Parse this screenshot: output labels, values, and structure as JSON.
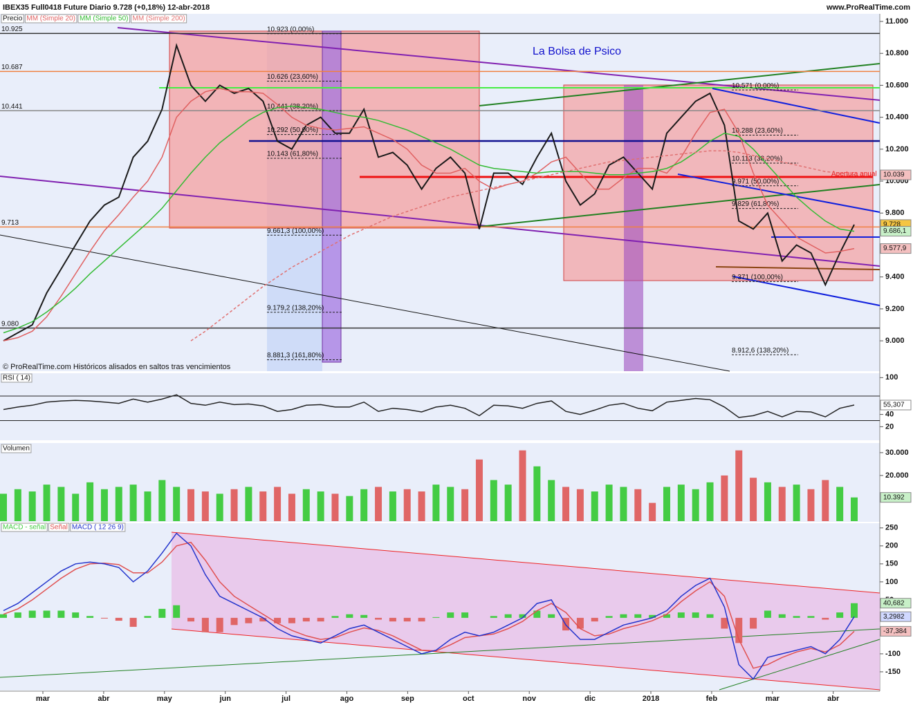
{
  "chart_data": [
    {
      "type": "line",
      "title": "IBEX35 Full0418 Future  Diario  9.728 (+0,18%)  12-abr-2018",
      "source": "www.ProRealTime.com",
      "watermark": "La Bolsa de Psico",
      "footnote": "© ProRealTime.com Históricos alisados en saltos tras vencimientos",
      "annotation": "Apertura anual",
      "ylim": [
        8810,
        11026
      ],
      "yticks": [
        {
          "value": 9000,
          "label": "9.000"
        },
        {
          "value": 9200,
          "label": "9.200"
        },
        {
          "value": 9400,
          "label": "9.400"
        },
        {
          "value": 9800,
          "label": "9.800"
        },
        {
          "value": 10000,
          "label": "10.000"
        },
        {
          "value": 10200,
          "label": "10.200"
        },
        {
          "value": 10400,
          "label": "10.400"
        },
        {
          "value": 10600,
          "label": "10.600"
        },
        {
          "value": 10800,
          "label": "10.800"
        },
        {
          "value": 11000,
          "label": "11.000"
        }
      ],
      "x_labels": [
        "mar",
        "abr",
        "may",
        "jun",
        "jul",
        "ago",
        "sep",
        "oct",
        "nov",
        "dic",
        "2018",
        "feb",
        "mar",
        "abr"
      ],
      "series": [
        {
          "name": "Precio",
          "color": "#1a1a1a",
          "values": [
            9000,
            9050,
            9100,
            9300,
            9450,
            9600,
            9750,
            9850,
            9900,
            10150,
            10250,
            10450,
            10850,
            10600,
            10500,
            10600,
            10550,
            10580,
            10500,
            10250,
            10200,
            10350,
            10400,
            10300,
            10300,
            10450,
            10150,
            10180,
            10100,
            9950,
            10080,
            10150,
            10050,
            9700,
            10050,
            10050,
            9980,
            10150,
            10300,
            10000,
            9850,
            9920,
            10100,
            10150,
            10050,
            9950,
            10300,
            10400,
            10500,
            10550,
            10350,
            9750,
            9700,
            9800,
            9500,
            9600,
            9550,
            9350,
            9550,
            9728
          ]
        },
        {
          "name": "MM (Simple 20)",
          "color": "#e06060",
          "values": [
            9000,
            9020,
            9060,
            9150,
            9280,
            9420,
            9560,
            9690,
            9790,
            9900,
            10000,
            10150,
            10400,
            10500,
            10560,
            10580,
            10560,
            10560,
            10550,
            10480,
            10400,
            10350,
            10330,
            10320,
            10330,
            10340,
            10300,
            10260,
            10200,
            10100,
            10050,
            10050,
            10080,
            10000,
            9950,
            9980,
            10000,
            10050,
            10120,
            10150,
            10050,
            9950,
            9950,
            10020,
            10080,
            10080,
            10050,
            10150,
            10300,
            10430,
            10450,
            10300,
            10050,
            9850,
            9750,
            9650,
            9600,
            9550,
            9560,
            9577.9
          ]
        },
        {
          "name": "MM (Simple 50)",
          "color": "#33bb33",
          "values": [
            9050,
            9080,
            9120,
            9180,
            9250,
            9330,
            9420,
            9500,
            9580,
            9660,
            9740,
            9830,
            9940,
            10050,
            10150,
            10240,
            10310,
            10380,
            10430,
            10460,
            10470,
            10460,
            10450,
            10430,
            10410,
            10400,
            10380,
            10350,
            10320,
            10280,
            10240,
            10200,
            10150,
            10100,
            10080,
            10070,
            10060,
            10050,
            10060,
            10060,
            10060,
            10050,
            10040,
            10040,
            10050,
            10060,
            10080,
            10120,
            10180,
            10250,
            10300,
            10280,
            10200,
            10100,
            10000,
            9900,
            9820,
            9750,
            9700,
            9686.1
          ]
        },
        {
          "name": "MM (Simple 200)",
          "color": "#e07070",
          "values": [
            null,
            null,
            null,
            null,
            null,
            null,
            null,
            null,
            null,
            null,
            null,
            null,
            null,
            9000,
            9060,
            9130,
            9200,
            9270,
            9340,
            9400,
            9460,
            9510,
            9560,
            9610,
            9660,
            9700,
            9740,
            9780,
            9810,
            9840,
            9870,
            9900,
            9920,
            9940,
            9960,
            9980,
            10000,
            10020,
            10040,
            10060,
            10080,
            10100,
            10120,
            10130,
            10140,
            10150,
            10160,
            10170,
            10180,
            10190,
            10190,
            10180,
            10160,
            10140,
            10120,
            10100,
            10080,
            10060,
            10050,
            10039
          ]
        }
      ],
      "levels": [
        {
          "value": 10925,
          "label": "10.925",
          "color": "#333333"
        },
        {
          "value": 10687,
          "label": "10.687",
          "color": "#f08040"
        },
        {
          "value": 10441,
          "label": "10.441",
          "color": "#888888"
        },
        {
          "value": 9713,
          "label": "9.713",
          "color": "#f08040"
        },
        {
          "value": 9080,
          "label": "9.080",
          "color": "#333333"
        }
      ],
      "fibs": [
        [
          {
            "value": 10923,
            "label": "10.923 (0,00%)"
          },
          {
            "value": 10626,
            "label": "10.626 (23,60%)"
          },
          {
            "value": 10441,
            "label": "10.441 (38,20%)"
          },
          {
            "value": 10292,
            "label": "10.292 (50,00%)"
          },
          {
            "value": 10143,
            "label": "10.143 (61,80%)"
          },
          {
            "value": 9661.3,
            "label": "9.661,3 (100,00%)"
          },
          {
            "value": 9179.2,
            "label": "9.179,2 (138,20%)"
          },
          {
            "value": 8881.3,
            "label": "8.881,3 (161,80%)"
          }
        ],
        [
          {
            "value": 10571,
            "label": "10.571 (0,00%)"
          },
          {
            "value": 10288,
            "label": "10.288 (23,60%)"
          },
          {
            "value": 10113,
            "label": "10.113 (38,20%)"
          },
          {
            "value": 9971,
            "label": "9.971 (50,00%)"
          },
          {
            "value": 9829,
            "label": "9.829 (61,80%)"
          },
          {
            "value": 9371,
            "label": "9.371 (100,00%)"
          },
          {
            "value": 8912.6,
            "label": "8.912,6 (138,20%)"
          }
        ]
      ],
      "boxes": [
        {
          "value": 10039,
          "label": "10.039",
          "color": "#f4c0c0"
        },
        {
          "value": 9728,
          "label": "9.728",
          "color": "#f5c542"
        },
        {
          "value": 9686.1,
          "label": "9.686,1",
          "color": "#c8f0c8"
        },
        {
          "value": 9577.9,
          "label": "9.577,9",
          "color": "#f4c0c0"
        }
      ]
    },
    {
      "type": "line",
      "ylim": [
        -1,
        106
      ],
      "yticks": [
        20,
        40,
        100
      ],
      "levels": [
        70,
        30
      ],
      "series": [
        {
          "name": "RSI ( 14)",
          "color": "#222222",
          "values": [
            48,
            52,
            55,
            60,
            62,
            63,
            62,
            60,
            58,
            65,
            60,
            65,
            72,
            58,
            55,
            60,
            56,
            57,
            54,
            45,
            48,
            55,
            56,
            52,
            52,
            60,
            45,
            50,
            48,
            44,
            52,
            55,
            50,
            38,
            55,
            54,
            50,
            58,
            62,
            45,
            40,
            47,
            55,
            58,
            50,
            46,
            60,
            63,
            66,
            64,
            52,
            35,
            38,
            45,
            36,
            45,
            44,
            36,
            50,
            55.307
          ]
        }
      ],
      "boxes": [
        {
          "value": 55.307,
          "label": "55,307",
          "color": "#ffffff"
        }
      ]
    },
    {
      "type": "bar",
      "ylim": [
        0,
        33600
      ],
      "yticks": [
        {
          "value": 20000,
          "label": "20.000"
        },
        {
          "value": 30000,
          "label": "30.000"
        }
      ],
      "up_color": "#44cc44",
      "down_color": "#e06666",
      "series": [
        {
          "name": "Volumen",
          "color": "#44cc44",
          "values": [
            12000,
            14000,
            13000,
            16000,
            15000,
            12000,
            17000,
            14000,
            15000,
            16000,
            13000,
            18000,
            15000,
            14000,
            13000,
            12000,
            14000,
            15000,
            13000,
            15000,
            12000,
            14000,
            13000,
            12000,
            11000,
            14000,
            15000,
            13000,
            14000,
            13000,
            16000,
            15000,
            14000,
            27000,
            18000,
            16000,
            31000,
            24000,
            18000,
            15000,
            14000,
            13000,
            16000,
            15000,
            14000,
            8000,
            15000,
            16000,
            14000,
            17000,
            20000,
            31000,
            19000,
            17000,
            15000,
            16000,
            14000,
            18000,
            15000,
            10392
          ]
        }
      ],
      "boxes": [
        {
          "value": 10392,
          "label": "10.392",
          "color": "#c8f0c8"
        }
      ]
    },
    {
      "type": "line",
      "ylim": [
        -200,
        263
      ],
      "yticks": [
        -150,
        -100,
        50,
        100,
        150,
        200,
        250
      ],
      "series": [
        {
          "name": "MACD - señal",
          "color": "#44cc44",
          "down_color": "#e06666",
          "style": "bar",
          "values": [
            10,
            15,
            20,
            20,
            20,
            15,
            5,
            -2,
            -8,
            -25,
            5,
            25,
            35,
            -10,
            -40,
            -40,
            -20,
            -15,
            -10,
            -15,
            -15,
            -10,
            -10,
            5,
            10,
            8,
            -5,
            -10,
            -10,
            -10,
            2,
            15,
            15,
            0,
            5,
            10,
            10,
            20,
            10,
            -35,
            -30,
            -10,
            5,
            10,
            10,
            8,
            10,
            15,
            15,
            10,
            -30,
            -70,
            -30,
            20,
            10,
            5,
            5,
            -5,
            15,
            40.682
          ]
        },
        {
          "name": "Señal",
          "color": "#e05050",
          "values": [
            10,
            25,
            50,
            80,
            110,
            135,
            150,
            152,
            148,
            125,
            125,
            155,
            200,
            210,
            160,
            100,
            60,
            35,
            10,
            -15,
            -35,
            -50,
            -60,
            -55,
            -40,
            -28,
            -35,
            -50,
            -70,
            -90,
            -92,
            -75,
            -55,
            -50,
            -45,
            -30,
            -10,
            20,
            40,
            15,
            -30,
            -50,
            -45,
            -30,
            -20,
            -8,
            10,
            45,
            75,
            100,
            60,
            -60,
            -140,
            -130,
            -110,
            -95,
            -85,
            -95,
            -75,
            -37.384
          ]
        },
        {
          "name": "MACD ( 12 26 9)",
          "color": "#2233cc",
          "values": [
            20,
            40,
            70,
            100,
            130,
            150,
            155,
            150,
            140,
            100,
            130,
            180,
            235,
            200,
            120,
            60,
            40,
            20,
            0,
            -30,
            -50,
            -60,
            -70,
            -50,
            -30,
            -20,
            -40,
            -60,
            -80,
            -100,
            -90,
            -60,
            -40,
            -50,
            -40,
            -20,
            0,
            40,
            50,
            -20,
            -60,
            -60,
            -40,
            -20,
            -10,
            0,
            20,
            60,
            90,
            110,
            30,
            -130,
            -170,
            -110,
            -100,
            -90,
            -80,
            -100,
            -60,
            3.2982
          ]
        }
      ],
      "boxes": [
        {
          "value": 40.682,
          "label": "40,682",
          "color": "#c8f0c8"
        },
        {
          "value": 3.2982,
          "label": "3,2982",
          "color": "#d0d8ff"
        },
        {
          "value": -37.384,
          "label": "-37,384",
          "color": "#f4c0c0"
        }
      ]
    }
  ]
}
